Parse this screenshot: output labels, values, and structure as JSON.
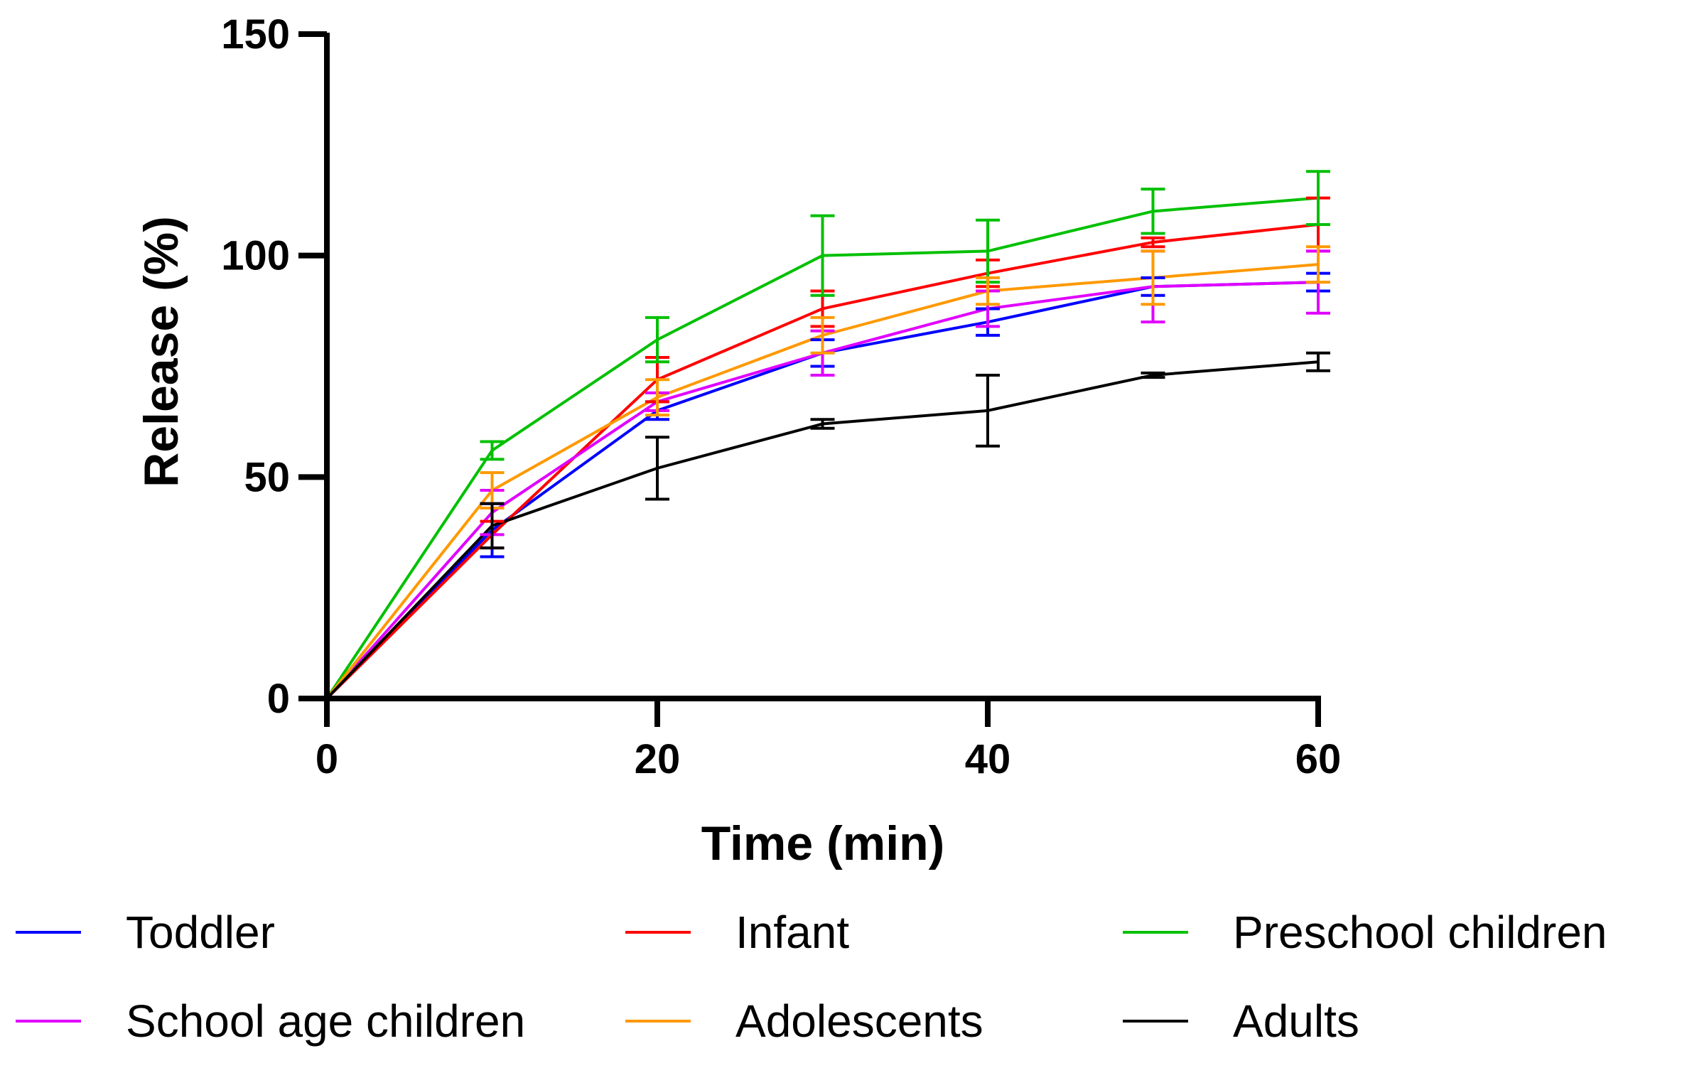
{
  "chart_data": {
    "type": "line",
    "title": "",
    "xlabel": "Time (min)",
    "ylabel": "Release (%)",
    "xlim": [
      0,
      60
    ],
    "ylim": [
      0,
      150
    ],
    "xticks": [
      0,
      20,
      40,
      60
    ],
    "yticks": [
      0,
      50,
      100,
      150
    ],
    "grid": false,
    "legend_position": "bottom",
    "x": [
      0,
      10,
      20,
      30,
      40,
      50,
      60
    ],
    "series": [
      {
        "name": "Toddler",
        "color": "#0000ff",
        "values": [
          0,
          38,
          65,
          78,
          85,
          93,
          94
        ],
        "errors": [
          0,
          6,
          2,
          3,
          3,
          2,
          2
        ]
      },
      {
        "name": "Infant",
        "color": "#ff0000",
        "values": [
          0,
          37,
          72,
          88,
          96,
          103,
          107
        ],
        "errors": [
          0,
          3,
          5,
          4,
          3,
          1,
          6
        ]
      },
      {
        "name": "Preschool children",
        "color": "#00c000",
        "values": [
          0,
          56,
          81,
          100,
          101,
          110,
          113
        ],
        "errors": [
          0,
          2,
          5,
          9,
          7,
          5,
          6
        ]
      },
      {
        "name": "School age children",
        "color": "#e000ff",
        "values": [
          0,
          42,
          67,
          78,
          88,
          93,
          94
        ],
        "errors": [
          0,
          5,
          2,
          5,
          4,
          8,
          7
        ]
      },
      {
        "name": "Adolescents",
        "color": "#ff9900",
        "values": [
          0,
          47,
          68,
          82,
          92,
          95,
          98
        ],
        "errors": [
          0,
          4,
          4,
          4,
          3,
          6,
          4
        ]
      },
      {
        "name": "Adults",
        "color": "#000000",
        "values": [
          0,
          39,
          52,
          62,
          65,
          73,
          76
        ],
        "errors": [
          0,
          5,
          7,
          1,
          8,
          0.5,
          2
        ]
      }
    ]
  }
}
